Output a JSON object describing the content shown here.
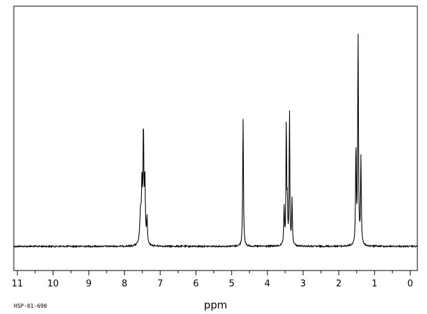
{
  "chart_data": {
    "type": "line",
    "title": "",
    "xlabel": "ppm",
    "ylabel": "",
    "xlim": [
      11.1,
      -0.2
    ],
    "x_reversed": true,
    "ylim": [
      0,
      1
    ],
    "grid": false,
    "x_tick_labels": [
      "11",
      "10",
      "9",
      "8",
      "7",
      "6",
      "5",
      "4",
      "3",
      "2",
      "1",
      "0"
    ],
    "x_ticks": [
      11,
      10,
      9,
      8,
      7,
      6,
      5,
      4,
      3,
      2,
      1,
      0
    ],
    "series": [
      {
        "peaks": [
          {
            "ppm": 7.55,
            "height": 0.14,
            "width": 0.025
          },
          {
            "ppm": 7.51,
            "height": 0.26,
            "width": 0.015
          },
          {
            "ppm": 7.47,
            "height": 0.52,
            "width": 0.012
          },
          {
            "ppm": 7.43,
            "height": 0.3,
            "width": 0.015
          },
          {
            "ppm": 7.37,
            "height": 0.12,
            "width": 0.012
          },
          {
            "ppm": 4.68,
            "height": 0.59,
            "width": 0.012
          },
          {
            "ppm": 3.53,
            "height": 0.17,
            "width": 0.012
          },
          {
            "ppm": 3.47,
            "height": 0.6,
            "width": 0.01
          },
          {
            "ppm": 3.44,
            "height": 0.2,
            "width": 0.01
          },
          {
            "ppm": 3.38,
            "height": 0.65,
            "width": 0.01
          },
          {
            "ppm": 3.31,
            "height": 0.21,
            "width": 0.012
          },
          {
            "ppm": 1.52,
            "height": 0.45,
            "width": 0.012
          },
          {
            "ppm": 1.46,
            "height": 0.96,
            "width": 0.012
          },
          {
            "ppm": 1.38,
            "height": 0.4,
            "width": 0.012
          }
        ]
      }
    ]
  },
  "footer": {
    "code": "HSP-01-690"
  },
  "colors": {
    "line": "#000000",
    "background": "#ffffff"
  }
}
